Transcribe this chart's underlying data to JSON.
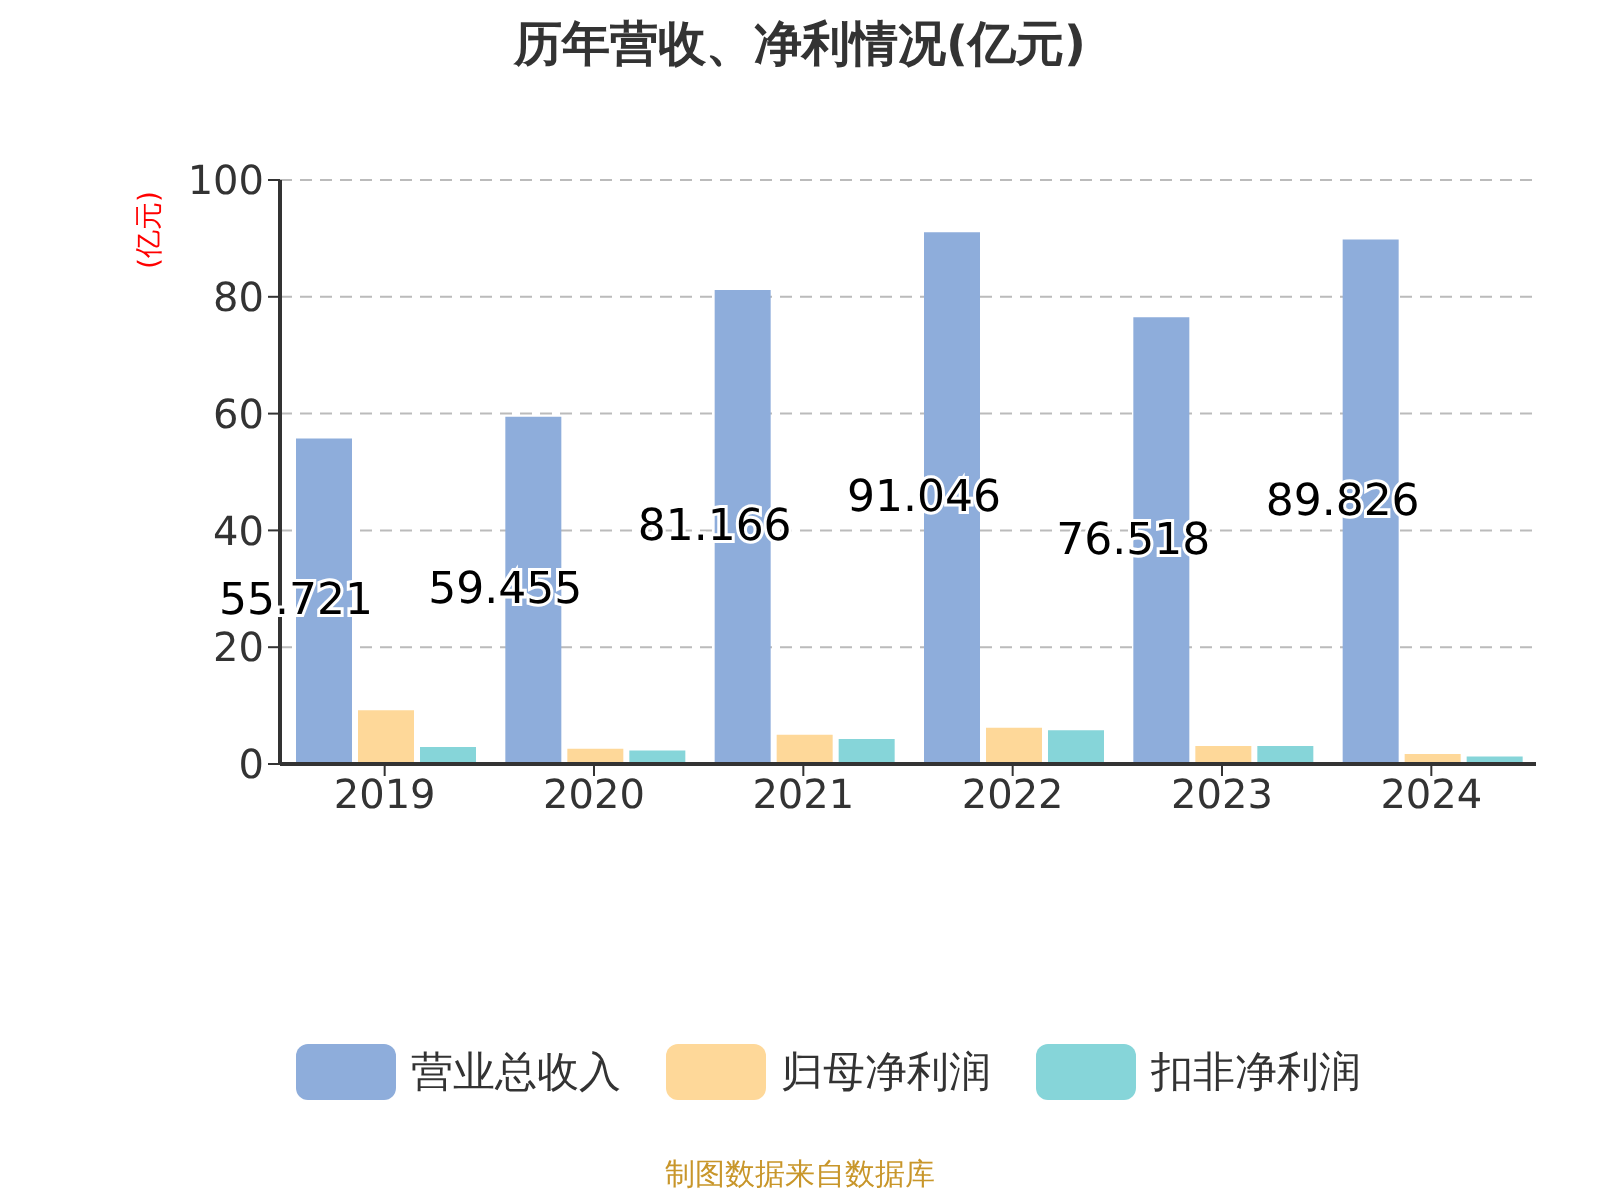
{
  "chart_data": {
    "type": "bar",
    "title": "历年营收、净利情况(亿元)",
    "ylabel": "(亿元)",
    "categories": [
      "2019",
      "2020",
      "2021",
      "2022",
      "2023",
      "2024"
    ],
    "series": [
      {
        "name": "营业总收入",
        "color": "#8eaddb",
        "values": [
          55.721,
          59.455,
          81.166,
          91.046,
          76.518,
          89.826
        ],
        "value_labels": [
          "55.721",
          "59.455",
          "81.166",
          "91.046",
          "76.518",
          "89.826"
        ]
      },
      {
        "name": "归母净利润",
        "color": "#fed899",
        "values": [
          9.2,
          2.6,
          5.0,
          6.2,
          3.1,
          1.7
        ]
      },
      {
        "name": "扣非净利润",
        "color": "#86d5d9",
        "values": [
          2.9,
          2.3,
          4.3,
          5.8,
          3.1,
          1.3
        ]
      }
    ],
    "ylim": [
      0,
      100
    ],
    "yticks": [
      0,
      20,
      40,
      60,
      80,
      100
    ],
    "grid": "y",
    "legend": "bottom",
    "annotations": [
      "制图数据来自数据库"
    ]
  }
}
